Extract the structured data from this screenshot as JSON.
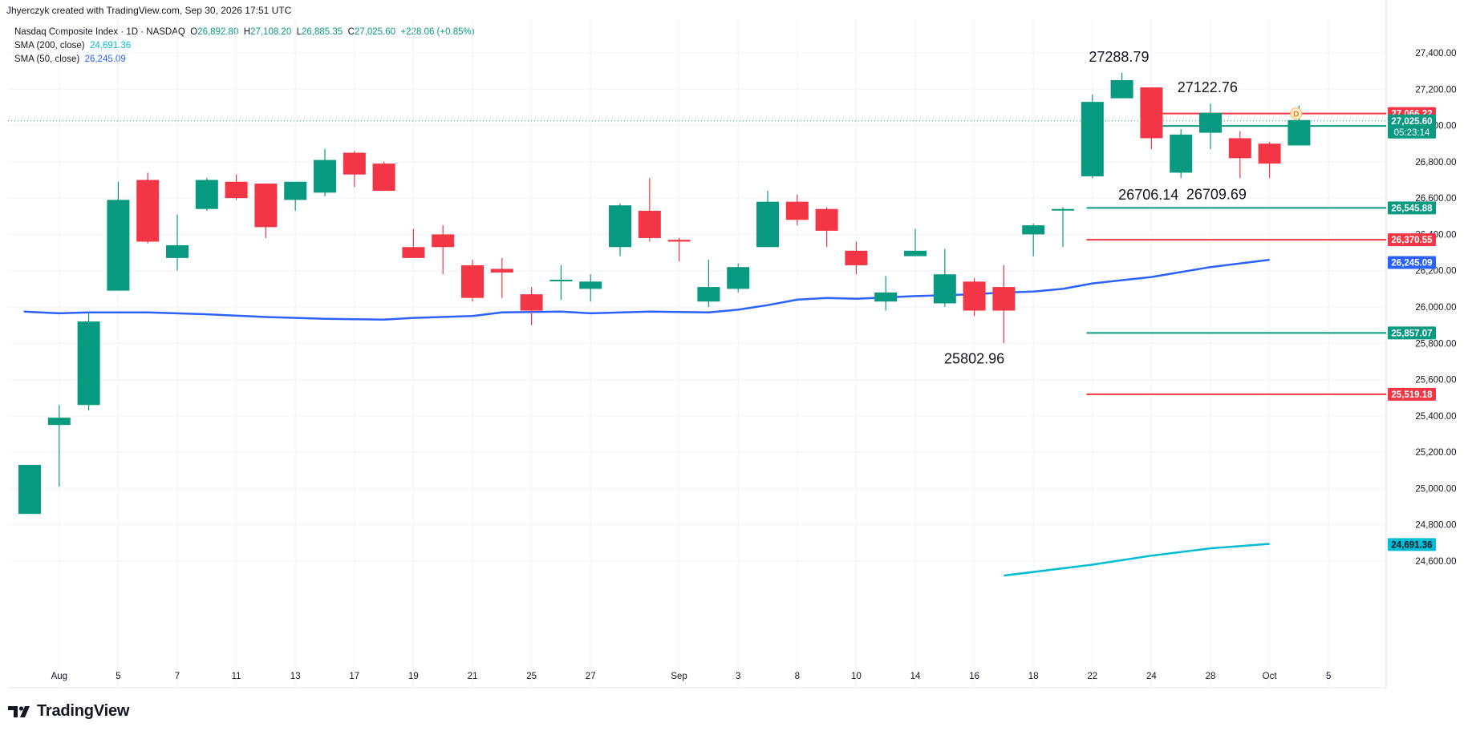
{
  "header": {
    "attribution": "Jhyerczyk created with TradingView.com, Sep 30, 2026 17:51 UTC"
  },
  "legend": {
    "symbol": "Nasdaq Composite Index · 1D · NASDAQ",
    "open_label": "O",
    "open": "26,892.80",
    "high_label": "H",
    "high": "27,108.20",
    "low_label": "L",
    "low": "26,885.35",
    "close_label": "C",
    "close": "27,025.60",
    "change": "+228.06 (+0.85%)",
    "sma200_label": "SMA (200, close)",
    "sma200_value": "24,691.36",
    "sma50_label": "SMA (50, close)",
    "sma50_value": "26,245.09"
  },
  "brand": {
    "name": "TradingView"
  },
  "colors": {
    "up": "#089981",
    "down": "#f23645",
    "sma50": "#2962ff",
    "sma200": "#00bcd4",
    "grid": "#f0f3fa",
    "text": "#131722"
  },
  "chart_data": {
    "type": "candlestick",
    "title": "Nasdaq Composite Index · 1D · NASDAQ",
    "ylim": [
      24540,
      27600
    ],
    "y_ticks": [
      24600,
      24800,
      25000,
      25200,
      25400,
      25600,
      25800,
      26000,
      26200,
      26400,
      26600,
      26800,
      27000,
      27200,
      27400
    ],
    "y_tick_labels": [
      "24,600.00",
      "24,800.00",
      "25,000.00",
      "25,200.00",
      "25,400.00",
      "25,600.00",
      "25,800.00",
      "26,000.00",
      "26,200.00",
      "26,400.00",
      "26,600.00",
      "26,800.00",
      "27,000.00",
      "27,200.00",
      "27,400.00"
    ],
    "x_labels": [
      {
        "i": 1,
        "label": "Aug"
      },
      {
        "i": 3,
        "label": "5"
      },
      {
        "i": 5,
        "label": "7"
      },
      {
        "i": 7,
        "label": "11"
      },
      {
        "i": 9,
        "label": "13"
      },
      {
        "i": 11,
        "label": "17"
      },
      {
        "i": 13,
        "label": "19"
      },
      {
        "i": 15,
        "label": "21"
      },
      {
        "i": 17,
        "label": "25"
      },
      {
        "i": 19,
        "label": "27"
      },
      {
        "i": 22,
        "label": "Sep"
      },
      {
        "i": 24,
        "label": "3"
      },
      {
        "i": 26,
        "label": "8"
      },
      {
        "i": 28,
        "label": "10"
      },
      {
        "i": 30,
        "label": "14"
      },
      {
        "i": 32,
        "label": "16"
      },
      {
        "i": 34,
        "label": "18"
      },
      {
        "i": 36,
        "label": "22"
      },
      {
        "i": 38,
        "label": "24"
      },
      {
        "i": 40,
        "label": "28"
      },
      {
        "i": 42,
        "label": "Oct"
      },
      {
        "i": 44,
        "label": "5"
      }
    ],
    "candles": [
      {
        "o": 24860,
        "h": 25130,
        "l": 24860,
        "c": 25130
      },
      {
        "o": 25350,
        "h": 25460,
        "l": 25010,
        "c": 25390
      },
      {
        "o": 25460,
        "h": 25970,
        "l": 25430,
        "c": 25920
      },
      {
        "o": 26090,
        "h": 26690,
        "l": 26090,
        "c": 26590
      },
      {
        "o": 26700,
        "h": 26740,
        "l": 26350,
        "c": 26360
      },
      {
        "o": 26270,
        "h": 26510,
        "l": 26200,
        "c": 26340
      },
      {
        "o": 26540,
        "h": 26710,
        "l": 26530,
        "c": 26700
      },
      {
        "o": 26690,
        "h": 26730,
        "l": 26590,
        "c": 26600
      },
      {
        "o": 26680,
        "h": 26680,
        "l": 26380,
        "c": 26440
      },
      {
        "o": 26590,
        "h": 26690,
        "l": 26530,
        "c": 26690
      },
      {
        "o": 26630,
        "h": 26870,
        "l": 26610,
        "c": 26810
      },
      {
        "o": 26850,
        "h": 26860,
        "l": 26660,
        "c": 26730
      },
      {
        "o": 26790,
        "h": 26800,
        "l": 26640,
        "c": 26640
      },
      {
        "o": 26330,
        "h": 26430,
        "l": 26270,
        "c": 26270
      },
      {
        "o": 26400,
        "h": 26450,
        "l": 26180,
        "c": 26330
      },
      {
        "o": 26230,
        "h": 26260,
        "l": 26030,
        "c": 26050
      },
      {
        "o": 26210,
        "h": 26270,
        "l": 26050,
        "c": 26190
      },
      {
        "o": 26070,
        "h": 26110,
        "l": 25900,
        "c": 25980
      },
      {
        "o": 26150,
        "h": 26230,
        "l": 26040,
        "c": 26150
      },
      {
        "o": 26100,
        "h": 26180,
        "l": 26030,
        "c": 26140
      },
      {
        "o": 26330,
        "h": 26570,
        "l": 26280,
        "c": 26560
      },
      {
        "o": 26530,
        "h": 26710,
        "l": 26360,
        "c": 26380
      },
      {
        "o": 26370,
        "h": 26380,
        "l": 26250,
        "c": 26360
      },
      {
        "o": 26030,
        "h": 26260,
        "l": 26000,
        "c": 26110
      },
      {
        "o": 26100,
        "h": 26240,
        "l": 26080,
        "c": 26220
      },
      {
        "o": 26330,
        "h": 26640,
        "l": 26330,
        "c": 26580
      },
      {
        "o": 26580,
        "h": 26620,
        "l": 26450,
        "c": 26480
      },
      {
        "o": 26540,
        "h": 26550,
        "l": 26330,
        "c": 26420
      },
      {
        "o": 26310,
        "h": 26360,
        "l": 26180,
        "c": 26230
      },
      {
        "o": 26030,
        "h": 26170,
        "l": 25980,
        "c": 26080
      },
      {
        "o": 26280,
        "h": 26430,
        "l": 26280,
        "c": 26310
      },
      {
        "o": 26020,
        "h": 26320,
        "l": 26000,
        "c": 26180
      },
      {
        "o": 26140,
        "h": 26160,
        "l": 25950,
        "c": 25980
      },
      {
        "o": 26110,
        "h": 26230,
        "l": 25800,
        "c": 25980
      },
      {
        "o": 26400,
        "h": 26460,
        "l": 26280,
        "c": 26450
      },
      {
        "o": 26540,
        "h": 26550,
        "l": 26330,
        "c": 26540
      },
      {
        "o": 26720,
        "h": 27170,
        "l": 26710,
        "c": 27130
      },
      {
        "o": 27150,
        "h": 27290,
        "l": 27150,
        "c": 27250
      },
      {
        "o": 27210,
        "h": 27210,
        "l": 26870,
        "c": 26930
      },
      {
        "o": 26740,
        "h": 26980,
        "l": 26710,
        "c": 26950
      },
      {
        "o": 26960,
        "h": 27120,
        "l": 26870,
        "c": 27070
      },
      {
        "o": 26930,
        "h": 26970,
        "l": 26710,
        "c": 26820
      },
      {
        "o": 26900,
        "h": 26910,
        "l": 26710,
        "c": 26790
      },
      {
        "o": 26890,
        "h": 27110,
        "l": 26890,
        "c": 27030
      }
    ],
    "sma50": [
      {
        "i": -0.2,
        "v": 25975
      },
      {
        "i": 1,
        "v": 25965
      },
      {
        "i": 2,
        "v": 25970
      },
      {
        "i": 4,
        "v": 25970
      },
      {
        "i": 6,
        "v": 25960
      },
      {
        "i": 8,
        "v": 25945
      },
      {
        "i": 10,
        "v": 25935
      },
      {
        "i": 12,
        "v": 25930
      },
      {
        "i": 13,
        "v": 25940
      },
      {
        "i": 15,
        "v": 25950
      },
      {
        "i": 16,
        "v": 25970
      },
      {
        "i": 18,
        "v": 25975
      },
      {
        "i": 19,
        "v": 25965
      },
      {
        "i": 21,
        "v": 25975
      },
      {
        "i": 23,
        "v": 25970
      },
      {
        "i": 24,
        "v": 25985
      },
      {
        "i": 25,
        "v": 26010
      },
      {
        "i": 26,
        "v": 26040
      },
      {
        "i": 27,
        "v": 26050
      },
      {
        "i": 28,
        "v": 26045
      },
      {
        "i": 30,
        "v": 26060
      },
      {
        "i": 32,
        "v": 26070
      },
      {
        "i": 33,
        "v": 26080
      },
      {
        "i": 34,
        "v": 26085
      },
      {
        "i": 35,
        "v": 26100
      },
      {
        "i": 36,
        "v": 26130
      },
      {
        "i": 38,
        "v": 26165
      },
      {
        "i": 40,
        "v": 26220
      },
      {
        "i": 42,
        "v": 26260
      }
    ],
    "sma200": [
      {
        "i": 33,
        "v": 24520
      },
      {
        "i": 36,
        "v": 24580
      },
      {
        "i": 38,
        "v": 24630
      },
      {
        "i": 40,
        "v": 24670
      },
      {
        "i": 42,
        "v": 24695
      }
    ],
    "hlines": [
      {
        "value": 27066.22,
        "from": 37.8,
        "to": 47.3,
        "color": "#f23645"
      },
      {
        "value": 26997.47,
        "from": 37.8,
        "to": 47.3,
        "color": "#089981"
      },
      {
        "value": 26545.88,
        "from": 35.8,
        "to": 47.3,
        "color": "#089981"
      },
      {
        "value": 26370.55,
        "from": 35.8,
        "to": 47.3,
        "color": "#f23645"
      },
      {
        "value": 25857.07,
        "from": 35.8,
        "to": 47.3,
        "color": "#089981"
      },
      {
        "value": 25519.18,
        "from": 35.8,
        "to": 47.3,
        "color": "#f23645"
      }
    ],
    "last_price": 27025.6,
    "price_labels": [
      {
        "value": 27066.22,
        "text": "27,066.22",
        "bg": "#f23645",
        "fg": "#ffffff"
      },
      {
        "value": 26997.47,
        "text": "26,997.47",
        "bg": "#089981",
        "fg": "#ffffff"
      },
      {
        "value": 26545.88,
        "text": "26,545.88",
        "bg": "#089981",
        "fg": "#ffffff"
      },
      {
        "value": 26370.55,
        "text": "26,370.55",
        "bg": "#f23645",
        "fg": "#ffffff"
      },
      {
        "value": 26245.09,
        "text": "26,245.09",
        "bg": "#2962ff",
        "fg": "#ffffff"
      },
      {
        "value": 25857.07,
        "text": "25,857.07",
        "bg": "#089981",
        "fg": "#ffffff"
      },
      {
        "value": 25519.18,
        "text": "25,519.18",
        "bg": "#f23645",
        "fg": "#ffffff"
      },
      {
        "value": 24691.36,
        "text": "24,691.36",
        "bg": "#00bcd4",
        "fg": "#131722"
      }
    ],
    "current_label": {
      "price": "27,025.60",
      "countdown": "05:23:14",
      "bg": "#089981"
    },
    "annotations": [
      {
        "i": 36.9,
        "value": 27288.79,
        "text": "27288.79",
        "pos": "above"
      },
      {
        "i": 39.9,
        "value": 27122.76,
        "text": "27122.76",
        "pos": "above"
      },
      {
        "i": 37.9,
        "value": 26706.14,
        "text": "26706.14",
        "pos": "below"
      },
      {
        "i": 40.2,
        "value": 26709.69,
        "text": "26709.69",
        "pos": "below"
      },
      {
        "i": 32.0,
        "value": 25802.96,
        "text": "25802.96",
        "pos": "below"
      }
    ],
    "marker": {
      "i": 42.9,
      "value": 27066.22,
      "text": "D"
    }
  }
}
